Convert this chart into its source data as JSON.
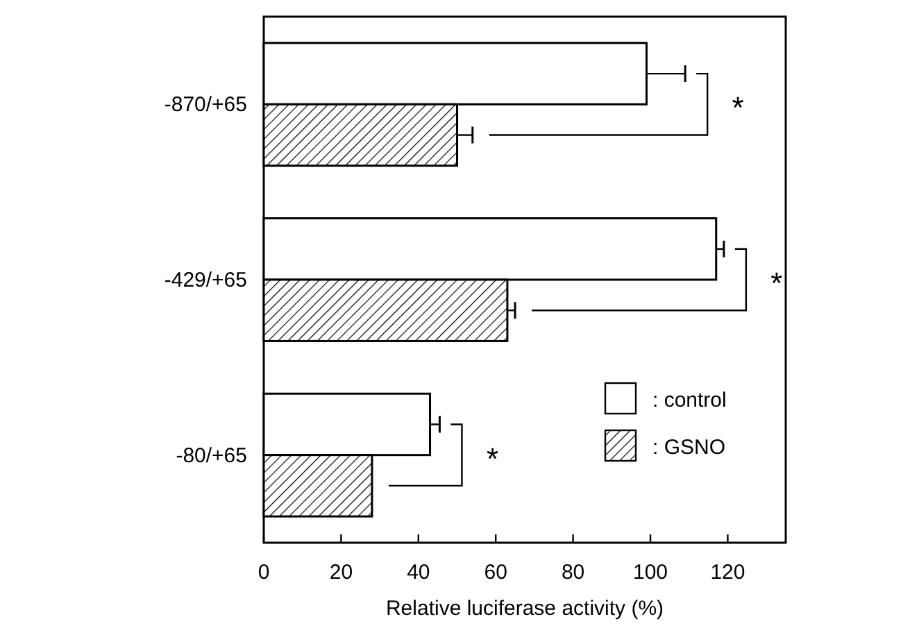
{
  "chart_data": {
    "type": "bar",
    "orientation": "horizontal",
    "categories": [
      "-870/+65",
      "-429/+65",
      "-80/+65"
    ],
    "series": [
      {
        "name": ": control",
        "color": "#ffffff",
        "values": [
          99,
          117,
          43
        ],
        "errors": [
          10,
          2,
          2.5
        ]
      },
      {
        "name": ": GSNO",
        "color": "#000000",
        "values": [
          50,
          63,
          28
        ],
        "errors": [
          4,
          2,
          null
        ]
      }
    ],
    "xlabel": "Relative luciferase activity (%)",
    "xlim": [
      0,
      135
    ],
    "xticks": [
      0,
      20,
      40,
      60,
      80,
      100,
      120
    ],
    "legend": "bottom right",
    "grid": false,
    "annotations": [
      "*",
      "*",
      "*"
    ]
  }
}
